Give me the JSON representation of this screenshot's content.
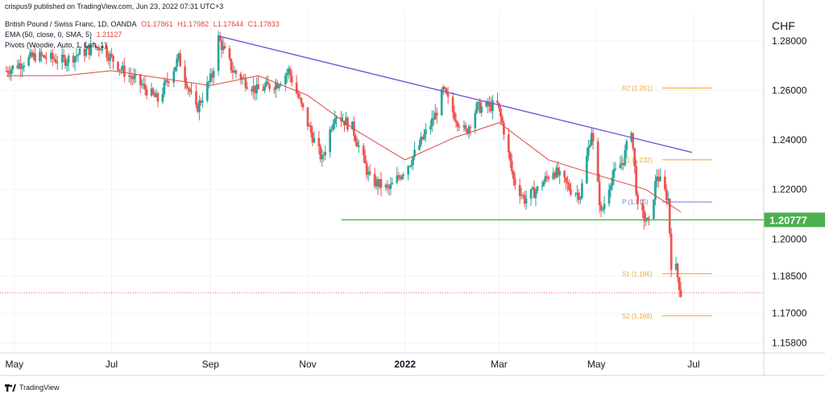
{
  "header": {
    "published": "crispus9 published on TradingView.com, Jun 23, 2022 07:31 UTC+3",
    "symbol": "British Pound / Swiss Franc, 1D, OANDA",
    "ohlc": [
      "O1.17861",
      "H1.17982",
      "L1.17644",
      "C1.17833"
    ],
    "ema_label": "EMA (50, close, 0, SMA, 5)",
    "ema_value": "1.21127",
    "pivots_label": "Pivots (Woodie, Auto, 1, Left, 1)"
  },
  "footer": {
    "brand": "TradingView"
  },
  "colors": {
    "up": "#26a69a",
    "down": "#ef5350",
    "ema": "#e0453e",
    "trendline": "#7b57d6",
    "support": "#4caf50",
    "pivot_orange": "#f5a623",
    "pivot_blue": "#6b7bd8",
    "price_line": "#ef5350"
  },
  "chart_data": {
    "type": "candlestick",
    "y_unit": "CHF",
    "x_tick_labels": [
      "May",
      "Jul",
      "Sep",
      "Nov",
      "2022",
      "Mar",
      "May",
      "Jul"
    ],
    "y_tick_labels": [
      "1.28000",
      "1.26000",
      "1.24000",
      "1.22000",
      "1.20000",
      "1.18500",
      "1.17000",
      "1.15800"
    ],
    "ylim": [
      1.154,
      1.292
    ],
    "current_price": 1.17833,
    "support_level": {
      "label": "1.20777",
      "value": 1.20777
    },
    "pivots": [
      {
        "name": "R2",
        "label": "R2 (1.261)",
        "value": 1.261
      },
      {
        "name": "R1",
        "label": "R1 (1.232)",
        "value": 1.232
      },
      {
        "name": "P",
        "label": "P (1.215)",
        "value": 1.215
      },
      {
        "name": "S1",
        "label": "S1 (1.186)",
        "value": 1.186
      },
      {
        "name": "S2",
        "label": "S2 (1.169)",
        "value": 1.169
      }
    ],
    "trendline": {
      "from": [
        "2021-09-06",
        1.282
      ],
      "to": [
        "2022-06-30",
        1.235
      ]
    },
    "close_path": [
      [
        "2021-04-26",
        1.268
      ],
      [
        "2021-05-14",
        1.274
      ],
      [
        "2021-06-01",
        1.272
      ],
      [
        "2021-06-15",
        1.276
      ],
      [
        "2021-06-24",
        1.278
      ],
      [
        "2021-07-08",
        1.268
      ],
      [
        "2021-07-20",
        1.262
      ],
      [
        "2021-07-30",
        1.256
      ],
      [
        "2021-08-12",
        1.273
      ],
      [
        "2021-08-23",
        1.252
      ],
      [
        "2021-09-02",
        1.266
      ],
      [
        "2021-09-06",
        1.281
      ],
      [
        "2021-09-15",
        1.268
      ],
      [
        "2021-09-30",
        1.26
      ],
      [
        "2021-10-13",
        1.263
      ],
      [
        "2021-10-20",
        1.268
      ],
      [
        "2021-11-03",
        1.243
      ],
      [
        "2021-11-10",
        1.232
      ],
      [
        "2021-11-18",
        1.251
      ],
      [
        "2021-11-29",
        1.245
      ],
      [
        "2021-12-10",
        1.224
      ],
      [
        "2021-12-22",
        1.22
      ],
      [
        "2022-01-05",
        1.232
      ],
      [
        "2022-01-20",
        1.25
      ],
      [
        "2022-01-25",
        1.26
      ],
      [
        "2022-02-01",
        1.25
      ],
      [
        "2022-02-08",
        1.243
      ],
      [
        "2022-02-15",
        1.253
      ],
      [
        "2022-02-28",
        1.254
      ],
      [
        "2022-03-04",
        1.244
      ],
      [
        "2022-03-10",
        1.224
      ],
      [
        "2022-03-17",
        1.216
      ],
      [
        "2022-03-25",
        1.22
      ],
      [
        "2022-04-04",
        1.228
      ],
      [
        "2022-04-15",
        1.22
      ],
      [
        "2022-04-21",
        1.218
      ],
      [
        "2022-04-28",
        1.244
      ],
      [
        "2022-05-04",
        1.21
      ],
      [
        "2022-05-10",
        1.224
      ],
      [
        "2022-05-18",
        1.232
      ],
      [
        "2022-05-23",
        1.245
      ],
      [
        "2022-05-27",
        1.212
      ],
      [
        "2022-06-03",
        1.206
      ],
      [
        "2022-06-08",
        1.226
      ],
      [
        "2022-06-15",
        1.216
      ],
      [
        "2022-06-17",
        1.19
      ],
      [
        "2022-06-20",
        1.188
      ],
      [
        "2022-06-23",
        1.178
      ]
    ],
    "ema50_path": [
      [
        "2021-04-26",
        1.266
      ],
      [
        "2021-06-01",
        1.266
      ],
      [
        "2021-07-01",
        1.268
      ],
      [
        "2021-08-01",
        1.265
      ],
      [
        "2021-09-01",
        1.262
      ],
      [
        "2021-10-01",
        1.266
      ],
      [
        "2021-11-01",
        1.258
      ],
      [
        "2021-12-01",
        1.244
      ],
      [
        "2022-01-01",
        1.232
      ],
      [
        "2022-02-01",
        1.241
      ],
      [
        "2022-03-01",
        1.247
      ],
      [
        "2022-04-01",
        1.232
      ],
      [
        "2022-05-01",
        1.226
      ],
      [
        "2022-06-01",
        1.22
      ],
      [
        "2022-06-23",
        1.211
      ]
    ]
  }
}
